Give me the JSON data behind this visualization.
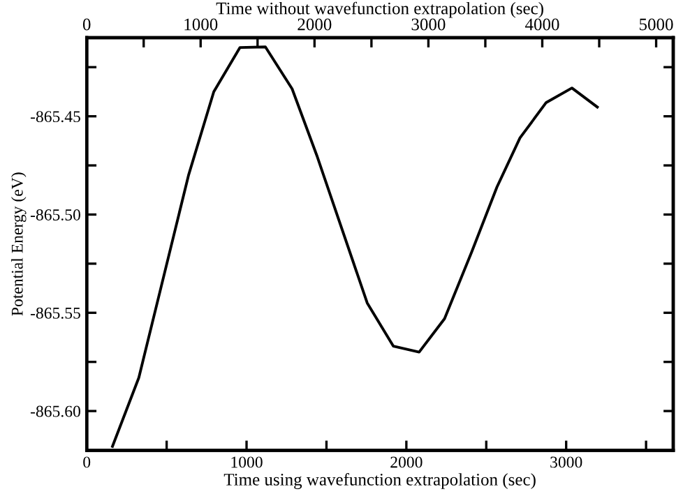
{
  "chart_data": {
    "type": "line",
    "xlabel": "Time using wavefunction extrapolation (sec)",
    "x2label": "Time without wavefunction extrapolation (sec)",
    "ylabel": "Potential Energy (eV)",
    "x": [
      161,
      326,
      637,
      795,
      959,
      1118,
      1285,
      1440,
      1755,
      1919,
      2080,
      2239,
      2409,
      2567,
      2711,
      2875,
      3036,
      3195
    ],
    "series": [
      {
        "color": "#000000",
        "values": [
          -865.618,
          -865.583,
          -865.48,
          -865.4375,
          -865.415,
          -865.4147,
          -865.436,
          -865.47,
          -865.545,
          -865.567,
          -865.57,
          -865.553,
          -865.519,
          -865.486,
          -865.461,
          -865.443,
          -865.4356,
          -865.4453
        ]
      }
    ],
    "xlim": [
      0,
      3670
    ],
    "xticks": [
      0,
      {
        "value": 500,
        "label": null
      },
      1000,
      {
        "value": 1500,
        "label": null
      },
      2000,
      {
        "value": 2500,
        "label": null
      },
      3000,
      {
        "value": 3500,
        "label": null
      }
    ],
    "x2lim": [
      0,
      5150
    ],
    "x2ticks": [
      0,
      {
        "value": 500,
        "label": null
      },
      1000,
      {
        "value": 1500,
        "label": null
      },
      2000,
      {
        "value": 2500,
        "label": null
      },
      3000,
      {
        "value": 3500,
        "label": null
      },
      4000,
      {
        "value": 4500,
        "label": null
      },
      5000
    ],
    "ylim": [
      -865.62,
      -865.41
    ],
    "yticks": [
      {
        "value": -865.6,
        "label": "-865.60"
      },
      {
        "value": -865.575,
        "label": null
      },
      {
        "value": -865.55,
        "label": "-865.55"
      },
      {
        "value": -865.525,
        "label": null
      },
      {
        "value": -865.5,
        "label": "-865.50"
      },
      {
        "value": -865.475,
        "label": null
      },
      {
        "value": -865.45,
        "label": "-865.45"
      },
      {
        "value": -865.425,
        "label": null
      }
    ],
    "grid": false,
    "legend": false,
    "marker": "none",
    "line_style": "solid"
  }
}
